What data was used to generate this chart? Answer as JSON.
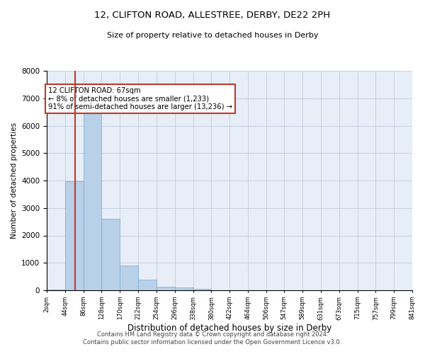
{
  "title1": "12, CLIFTON ROAD, ALLESTREE, DERBY, DE22 2PH",
  "title2": "Size of property relative to detached houses in Derby",
  "xlabel": "Distribution of detached houses by size in Derby",
  "ylabel": "Number of detached properties",
  "annotation_title": "12 CLIFTON ROAD: 67sqm",
  "annotation_line1": "← 8% of detached houses are smaller (1,233)",
  "annotation_line2": "91% of semi-detached houses are larger (13,236) →",
  "property_size_sqm": 67,
  "bin_edges": [
    2,
    44,
    86,
    128,
    170,
    212,
    254,
    296,
    338,
    380,
    422,
    464,
    506,
    547,
    589,
    631,
    673,
    715,
    757,
    799,
    841
  ],
  "bar_values": [
    20,
    3980,
    6500,
    2600,
    900,
    380,
    130,
    100,
    60,
    0,
    0,
    0,
    0,
    0,
    0,
    0,
    0,
    0,
    0,
    0
  ],
  "bar_color": "#b8d0e8",
  "bar_edge_color": "#7aabcf",
  "vline_color": "#c0392b",
  "vline_x": 67,
  "annotation_box_color": "#c0392b",
  "annotation_fill": "#ffffff",
  "ylim": [
    0,
    8000
  ],
  "yticks": [
    0,
    1000,
    2000,
    3000,
    4000,
    5000,
    6000,
    7000,
    8000
  ],
  "background_color": "#e8eef8",
  "footer1": "Contains HM Land Registry data © Crown copyright and database right 2024.",
  "footer2": "Contains public sector information licensed under the Open Government Licence v3.0."
}
